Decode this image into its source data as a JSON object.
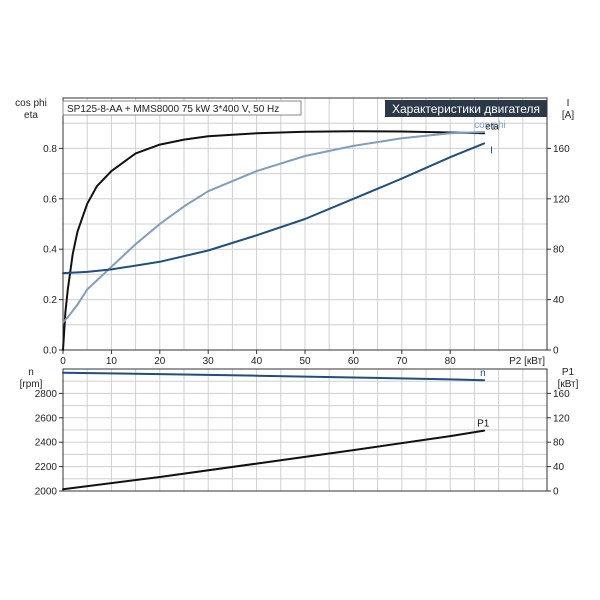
{
  "header": {
    "pump_info": "SP125-8-AA + MMS8000  75 kW  3*400 V, 50 Hz",
    "title": "Характеристики двигателя"
  },
  "colors": {
    "eta": "#111111",
    "cos_phi": "#7f9fbf",
    "I": "#1f4e80",
    "n": "#1f4e80",
    "P1": "#111111",
    "title_bg": "#2a3847"
  },
  "chart_data": [
    {
      "type": "line",
      "xlabel": "P2 [кВт]",
      "xlim": [
        0,
        100
      ],
      "x_ticks": [
        0,
        10,
        20,
        30,
        40,
        50,
        60,
        70,
        80
      ],
      "y_left_label": [
        "cos phi",
        "eta"
      ],
      "y_left_lim": [
        0,
        1.0
      ],
      "y_left_ticks": [
        "0.0",
        "0.2",
        "0.4",
        "0.6",
        "0.8"
      ],
      "y_right_label": [
        "I",
        "[A]"
      ],
      "y_right_lim": [
        0,
        200
      ],
      "y_right_ticks": [
        "0",
        "40",
        "80",
        "120",
        "160"
      ],
      "grid": true,
      "series": [
        {
          "name": "eta",
          "axis": "left",
          "color_key": "eta",
          "points": [
            [
              0,
              0
            ],
            [
              0.5,
              0.15
            ],
            [
              1,
              0.24
            ],
            [
              2,
              0.38
            ],
            [
              3,
              0.47
            ],
            [
              5,
              0.58
            ],
            [
              7,
              0.65
            ],
            [
              10,
              0.71
            ],
            [
              15,
              0.78
            ],
            [
              20,
              0.815
            ],
            [
              25,
              0.835
            ],
            [
              30,
              0.848
            ],
            [
              40,
              0.86
            ],
            [
              50,
              0.866
            ],
            [
              60,
              0.868
            ],
            [
              70,
              0.867
            ],
            [
              80,
              0.863
            ],
            [
              87,
              0.86
            ]
          ]
        },
        {
          "name": "cos phi",
          "axis": "left",
          "color_key": "cos_phi",
          "points": [
            [
              0,
              0.11
            ],
            [
              1,
              0.13
            ],
            [
              3,
              0.18
            ],
            [
              5,
              0.24
            ],
            [
              10,
              0.33
            ],
            [
              15,
              0.42
            ],
            [
              20,
              0.5
            ],
            [
              25,
              0.57
            ],
            [
              30,
              0.63
            ],
            [
              40,
              0.71
            ],
            [
              50,
              0.77
            ],
            [
              60,
              0.81
            ],
            [
              70,
              0.84
            ],
            [
              80,
              0.86
            ],
            [
              87,
              0.865
            ]
          ]
        },
        {
          "name": "I",
          "axis": "right",
          "color_key": "I",
          "points": [
            [
              0,
              61
            ],
            [
              5,
              62
            ],
            [
              10,
              64
            ],
            [
              20,
              70
            ],
            [
              30,
              79
            ],
            [
              40,
              91
            ],
            [
              50,
              104
            ],
            [
              60,
              120
            ],
            [
              70,
              136
            ],
            [
              80,
              153
            ],
            [
              87,
              164
            ]
          ]
        }
      ]
    },
    {
      "type": "line",
      "xlim": [
        0,
        100
      ],
      "y_left_label": [
        "n",
        "[rpm]"
      ],
      "y_left_lim": [
        2000,
        3000
      ],
      "y_left_ticks": [
        "2000",
        "2200",
        "2400",
        "2600",
        "2800"
      ],
      "y_right_label": [
        "P1",
        "[кВт]"
      ],
      "y_right_lim": [
        0,
        200
      ],
      "y_right_ticks": [
        "0",
        "40",
        "80",
        "120",
        "160"
      ],
      "grid": true,
      "series": [
        {
          "name": "n",
          "axis": "left",
          "color_key": "n",
          "points": [
            [
              0,
              2970
            ],
            [
              20,
              2958
            ],
            [
              40,
              2945
            ],
            [
              60,
              2930
            ],
            [
              80,
              2915
            ],
            [
              87,
              2908
            ]
          ]
        },
        {
          "name": "P1",
          "axis": "right",
          "color_key": "P1",
          "points": [
            [
              0,
              3
            ],
            [
              20,
              23
            ],
            [
              40,
              45
            ],
            [
              60,
              67
            ],
            [
              80,
              90
            ],
            [
              87,
              99
            ]
          ]
        }
      ]
    }
  ]
}
